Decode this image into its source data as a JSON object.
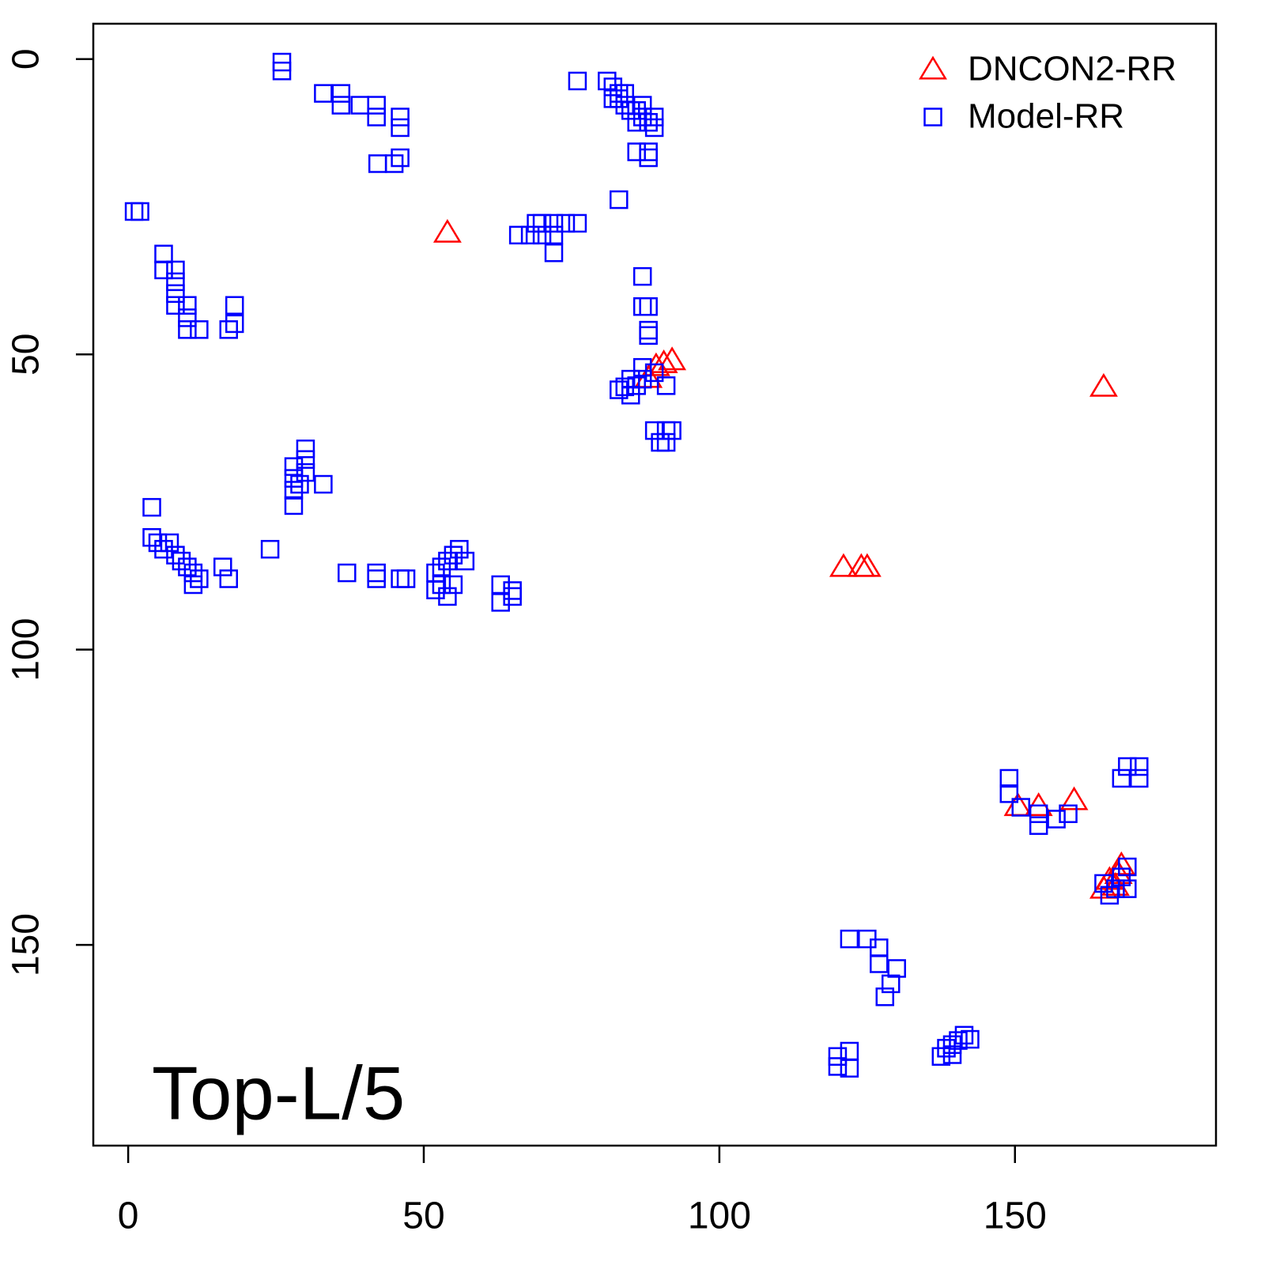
{
  "chart_data": {
    "type": "scatter",
    "annotation": "Top-L/5",
    "xlim": [
      -5.9,
      184
    ],
    "ylim": [
      184,
      -6
    ],
    "xticks": [
      0,
      50,
      100,
      150
    ],
    "yticks": [
      0,
      50,
      100,
      150
    ],
    "grid": false,
    "legend": "top-right",
    "series": [
      {
        "name": "DNCON2-RR",
        "color": "#ff0000",
        "marker": "triangle",
        "x": [
          54,
          88,
          89.3,
          90.6,
          92,
          165,
          121,
          124,
          125,
          150.5,
          154,
          160,
          165,
          166,
          167.5,
          168,
          167
        ],
        "y": [
          29.4,
          54,
          52,
          51.5,
          51,
          55.5,
          86,
          86,
          86,
          126.5,
          126.5,
          125.5,
          140.5,
          139,
          138,
          136.5,
          140
        ]
      },
      {
        "name": "Model-RR",
        "color": "#0000ff",
        "marker": "square",
        "x": [
          26,
          26,
          33,
          36,
          36,
          39.2,
          42,
          42,
          46,
          46,
          42.2,
          45,
          46,
          1,
          2,
          6,
          6,
          8,
          8,
          8,
          8,
          10,
          10,
          10,
          12,
          17,
          18,
          18,
          76,
          81,
          82,
          83,
          83,
          84,
          85,
          86,
          87,
          88,
          89,
          86,
          82,
          84,
          87,
          89,
          86,
          88,
          88,
          83,
          76,
          72,
          69,
          66,
          68,
          70,
          72,
          72,
          70,
          74,
          87,
          87,
          88,
          88,
          88,
          87,
          85,
          84,
          83,
          85,
          86,
          91,
          89,
          87,
          89,
          91,
          92,
          90,
          91,
          30,
          30,
          28,
          30,
          28,
          29,
          33,
          28,
          28,
          4,
          4,
          5,
          6,
          7,
          8,
          9,
          10,
          11,
          12,
          11,
          16,
          17,
          24,
          37,
          42,
          42,
          46,
          47,
          52,
          53,
          54,
          55,
          56,
          57,
          52,
          54,
          53,
          55,
          63,
          63,
          65,
          65,
          149,
          149,
          151,
          154,
          154,
          157,
          159,
          169,
          171,
          168,
          171,
          169,
          165,
          166,
          168,
          169,
          167,
          122,
          125,
          127,
          127,
          130,
          129,
          128,
          120,
          120,
          122,
          122,
          137.5,
          138.4,
          139.4,
          140.4,
          141.4,
          142.4,
          139.4
        ],
        "y": [
          0.5,
          2,
          5.8,
          5.8,
          7.8,
          7.8,
          7.8,
          9.8,
          9.8,
          11.6,
          17.7,
          17.7,
          16.7,
          25.8,
          25.8,
          33,
          35.7,
          35.7,
          37.7,
          39.7,
          41.7,
          41.7,
          43.8,
          45.8,
          45.8,
          45.8,
          44.8,
          41.7,
          3.7,
          3.7,
          4.7,
          5.8,
          6.7,
          7.8,
          8.7,
          8.7,
          9.8,
          10.7,
          11.6,
          10.7,
          6.7,
          5.8,
          7.8,
          9.8,
          15.7,
          15.7,
          16.7,
          23.8,
          27.8,
          27.8,
          27.8,
          29.8,
          29.8,
          29.8,
          29.8,
          32.8,
          27.8,
          27.8,
          36.8,
          41.9,
          41.9,
          45.9,
          46.8,
          52.2,
          54.2,
          55.5,
          56,
          56.9,
          55.3,
          55.3,
          53.1,
          54.2,
          62.9,
          62.9,
          62.9,
          64.9,
          64.9,
          66,
          67.8,
          69,
          70,
          71,
          72,
          72,
          73,
          75.6,
          75.9,
          81,
          81.9,
          83,
          81.9,
          84,
          85,
          86,
          87,
          88,
          89,
          86,
          88,
          83,
          87,
          87,
          88,
          88,
          88,
          87,
          86,
          85,
          84,
          83,
          85,
          89.9,
          91,
          89,
          89,
          89,
          92,
          90,
          91,
          121.8,
          124.4,
          126.7,
          127.8,
          129.8,
          128.7,
          127.8,
          119.8,
          119.8,
          121.8,
          121.8,
          136.8,
          139.6,
          141.6,
          138.5,
          140.5,
          140.5,
          149,
          149,
          150.5,
          153.2,
          154,
          156.6,
          158.8,
          168.9,
          170.6,
          168,
          170.9,
          168.9,
          167.5,
          166.9,
          166.2,
          165.3,
          166,
          168.6
        ]
      }
    ]
  }
}
